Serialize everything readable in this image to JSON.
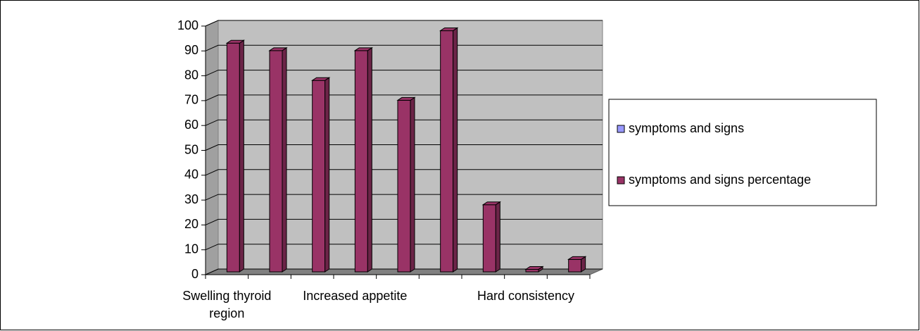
{
  "chart_data": {
    "type": "bar3d",
    "categories": [
      "Swelling thyroid region",
      null,
      null,
      "Increased appetite",
      null,
      null,
      null,
      "Hard consistency",
      null
    ],
    "series": [
      {
        "name": "symptoms and signs",
        "color": "#9999ff",
        "values": [
          null,
          null,
          null,
          null,
          null,
          null,
          null,
          null,
          null
        ]
      },
      {
        "name": "symptoms and signs percentage",
        "color": "#993366",
        "values": [
          92,
          89,
          77,
          89,
          69,
          97,
          27,
          1,
          5
        ]
      }
    ],
    "ylim": [
      0,
      100
    ],
    "yticks": [
      0,
      10,
      20,
      30,
      40,
      50,
      60,
      70,
      80,
      90,
      100
    ],
    "grid": true,
    "legend": "right"
  }
}
